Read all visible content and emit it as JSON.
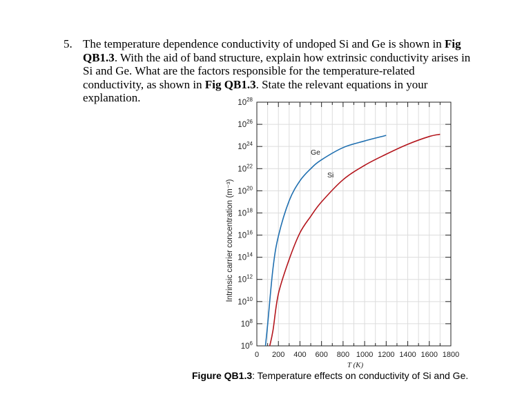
{
  "question": {
    "number": "5.",
    "text_1": "The temperature dependence conductivity of undoped Si and Ge is shown in ",
    "ref_1": "Fig QB1.3",
    "text_2": ". With the aid of band structure, explain how extrinsic conductivity arises in Si and Ge. What are the factors responsible for the temperature-related conductivity, as shown in ",
    "ref_2": "Fig QB1.3",
    "text_3": ". State the relevant equations in your explanation."
  },
  "figure": {
    "caption_label": "Figure QB1.3",
    "caption_text": ": Temperature effects on conductivity of Si and Ge."
  },
  "chart_data": {
    "type": "line",
    "xlabel": "T (K)",
    "ylabel": "Intrinsic carrier concentration (m⁻³)",
    "xlim": [
      0,
      1800
    ],
    "ylim_log10": [
      6,
      28
    ],
    "y_scale": "log",
    "grid": true,
    "x_ticks": [
      "0",
      "200",
      "400",
      "600",
      "800",
      "1000",
      "1200",
      "1400",
      "1600",
      "1800"
    ],
    "y_ticks": [
      {
        "base": "10",
        "exp": "6"
      },
      {
        "base": "10",
        "exp": "8"
      },
      {
        "base": "10",
        "exp": "10"
      },
      {
        "base": "10",
        "exp": "12"
      },
      {
        "base": "10",
        "exp": "14"
      },
      {
        "base": "10",
        "exp": "16"
      },
      {
        "base": "10",
        "exp": "18"
      },
      {
        "base": "10",
        "exp": "20"
      },
      {
        "base": "10",
        "exp": "22"
      },
      {
        "base": "10",
        "exp": "24"
      },
      {
        "base": "10",
        "exp": "26"
      },
      {
        "base": "10",
        "exp": "28"
      }
    ],
    "series": [
      {
        "name": "Ge",
        "color": "#1f6fb0",
        "x": [
          80,
          100,
          150,
          200,
          300,
          400,
          500,
          600,
          800,
          1000,
          1200
        ],
        "y_log10": [
          4.8,
          7.9,
          13.0,
          15.9,
          19.1,
          20.9,
          22.0,
          22.8,
          23.9,
          24.5,
          25.0
        ]
      },
      {
        "name": "Si",
        "color": "#b3141b",
        "x": [
          120,
          150,
          200,
          300,
          400,
          500,
          600,
          800,
          1000,
          1200,
          1400,
          1600,
          1700
        ],
        "y_log10": [
          4.4,
          7.4,
          10.7,
          13.8,
          16.2,
          17.7,
          19.0,
          21.0,
          22.3,
          23.3,
          24.2,
          24.9,
          25.1
        ]
      }
    ]
  }
}
